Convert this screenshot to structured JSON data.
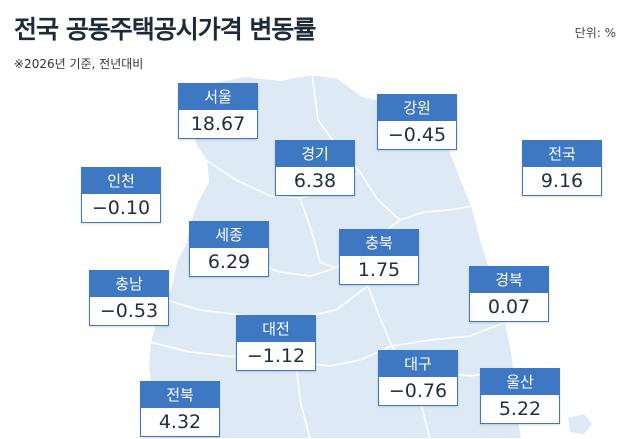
{
  "header": {
    "title": "전국 공동주택공시가격 변동률",
    "subtitle": "※2026년 기준, 전년대비",
    "unit": "단위: %"
  },
  "colors": {
    "label_header": "#3e78c2",
    "map_fill": "#dde9f5",
    "map_border": "#ffffff"
  },
  "regions": [
    {
      "name": "서울",
      "value": "18.67"
    },
    {
      "name": "강원",
      "value": "−0.45"
    },
    {
      "name": "인천",
      "value": "−0.10"
    },
    {
      "name": "경기",
      "value": "6.38"
    },
    {
      "name": "전국",
      "value": "9.16"
    },
    {
      "name": "세종",
      "value": "6.29"
    },
    {
      "name": "충북",
      "value": "1.75"
    },
    {
      "name": "충남",
      "value": "−0.53"
    },
    {
      "name": "경북",
      "value": "0.07"
    },
    {
      "name": "대전",
      "value": "−1.12"
    },
    {
      "name": "대구",
      "value": "−0.76"
    },
    {
      "name": "울산",
      "value": "5.22"
    },
    {
      "name": "전북",
      "value": "4.32"
    }
  ]
}
